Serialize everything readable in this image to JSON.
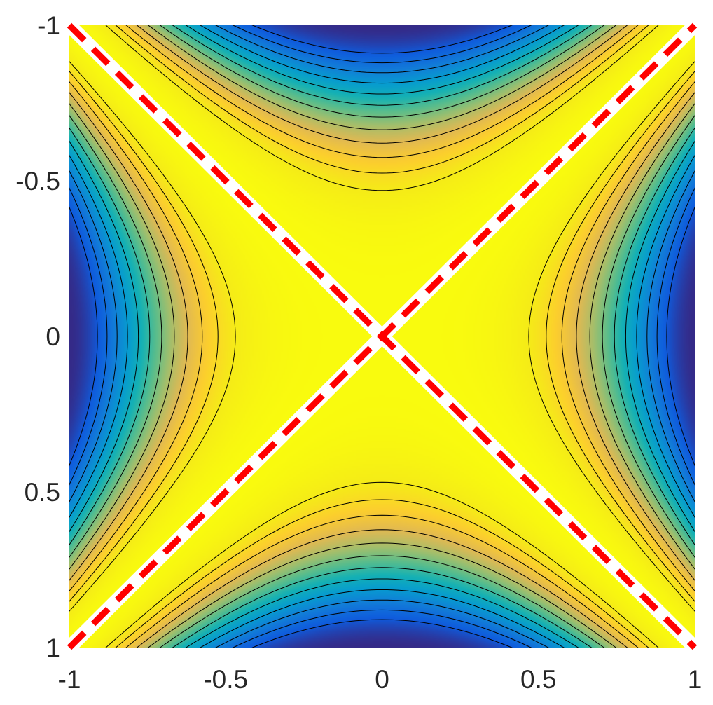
{
  "chart_data": {
    "type": "heatmap",
    "title": "",
    "xlabel": "",
    "ylabel": "",
    "xlim": [
      -1,
      1
    ],
    "ylim": [
      -1,
      1
    ],
    "y_direction": "reversed",
    "x_ticks": [
      "-1",
      "-0.5",
      "0",
      "0.5",
      "1"
    ],
    "y_ticks": [
      "-1",
      "-0.5",
      "0",
      "0.5",
      "1"
    ],
    "colormap": "parula",
    "contour_levels": 12,
    "grid": false,
    "field": "saddle surface, maximum along the diagonals, minimum at the centers of the edges",
    "lines": [
      {
        "x": [
          -1,
          1
        ],
        "y": [
          -1,
          1
        ],
        "style": "dashed",
        "color": "#ff0000",
        "halo": "#ffffff"
      },
      {
        "x": [
          -1,
          1
        ],
        "y": [
          1,
          -1
        ],
        "style": "dashed",
        "color": "#ff0000",
        "halo": "#ffffff"
      }
    ]
  }
}
